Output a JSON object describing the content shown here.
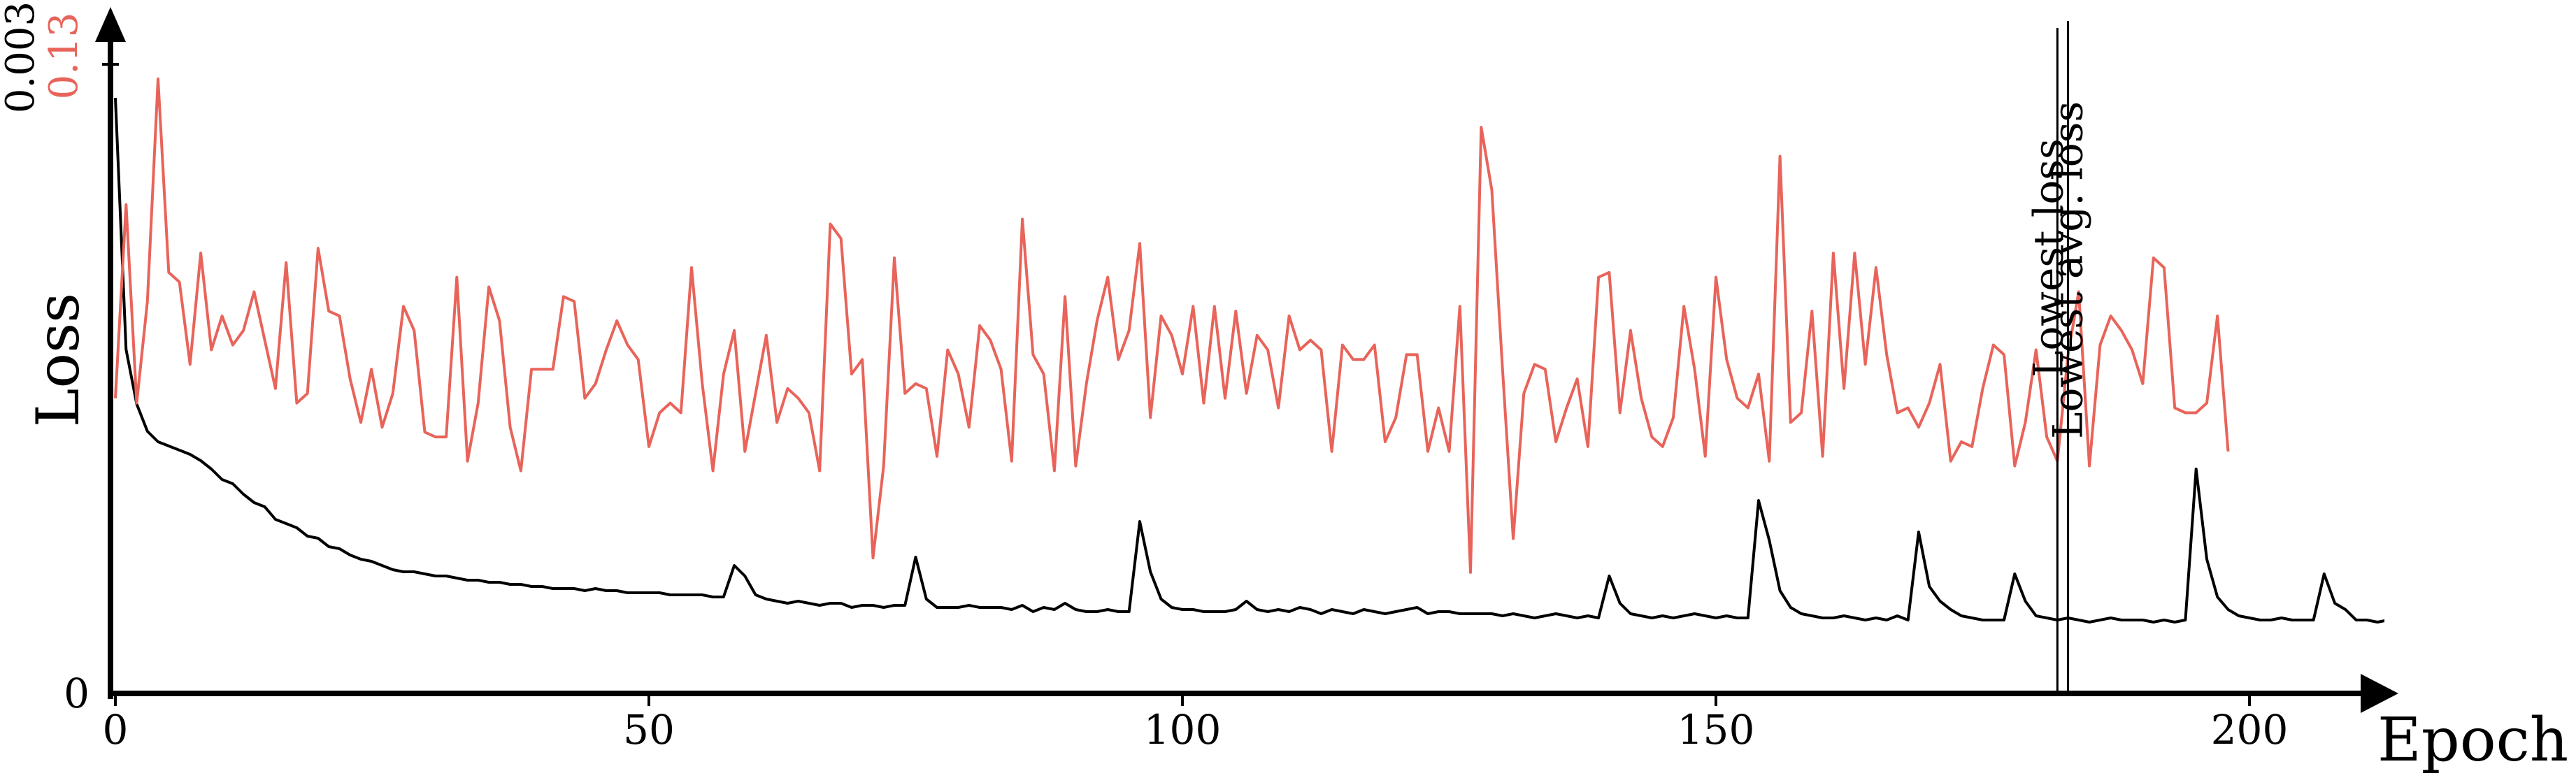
{
  "chart_data": {
    "type": "line",
    "xlabel": "Epoch",
    "ylabel": "Loss",
    "xlim": [
      0,
      210
    ],
    "x_ticks": [
      0,
      50,
      100,
      150,
      200
    ],
    "y_ticks_primary": {
      "values": [
        0,
        0.003
      ],
      "labels": [
        "0",
        "0.003"
      ]
    },
    "y_ticks_secondary": {
      "values": [
        0.13
      ],
      "labels": [
        "0.13"
      ],
      "color": "#e8645a"
    },
    "series": [
      {
        "color": "#000000",
        "axis": "primary",
        "ylim": [
          0,
          0.003
        ],
        "values": [
          0.00284,
          0.00164,
          0.00138,
          0.00125,
          0.0012,
          0.00118,
          0.00116,
          0.00114,
          0.00111,
          0.00107,
          0.00102,
          0.001,
          0.00095,
          0.00091,
          0.00089,
          0.00083,
          0.00081,
          0.00079,
          0.00075,
          0.00074,
          0.0007,
          0.00069,
          0.00066,
          0.00064,
          0.00063,
          0.00061,
          0.00059,
          0.00058,
          0.00058,
          0.00057,
          0.00056,
          0.00056,
          0.00055,
          0.00054,
          0.00054,
          0.00053,
          0.00053,
          0.00052,
          0.00052,
          0.00051,
          0.00051,
          0.0005,
          0.0005,
          0.0005,
          0.00049,
          0.0005,
          0.00049,
          0.00049,
          0.00048,
          0.00048,
          0.00048,
          0.00048,
          0.00047,
          0.00047,
          0.00047,
          0.00047,
          0.00046,
          0.00046,
          0.00061,
          0.00056,
          0.00047,
          0.00045,
          0.00044,
          0.00043,
          0.00044,
          0.00043,
          0.00042,
          0.00043,
          0.00043,
          0.00041,
          0.00042,
          0.00042,
          0.00041,
          0.00042,
          0.00042,
          0.00065,
          0.00045,
          0.00041,
          0.00041,
          0.00041,
          0.00042,
          0.00041,
          0.00041,
          0.00041,
          0.0004,
          0.00042,
          0.00039,
          0.00041,
          0.0004,
          0.00043,
          0.0004,
          0.00039,
          0.00039,
          0.0004,
          0.00039,
          0.00039,
          0.00082,
          0.00058,
          0.00045,
          0.00041,
          0.0004,
          0.0004,
          0.00039,
          0.00039,
          0.00039,
          0.0004,
          0.00044,
          0.0004,
          0.00039,
          0.0004,
          0.00039,
          0.00041,
          0.0004,
          0.00038,
          0.0004,
          0.00039,
          0.00038,
          0.0004,
          0.00039,
          0.00038,
          0.00039,
          0.0004,
          0.00041,
          0.00038,
          0.00039,
          0.00039,
          0.00038,
          0.00038,
          0.00038,
          0.00038,
          0.00037,
          0.00038,
          0.00037,
          0.00036,
          0.00037,
          0.00038,
          0.00037,
          0.00036,
          0.00037,
          0.00036,
          0.00056,
          0.00043,
          0.00038,
          0.00037,
          0.00036,
          0.00037,
          0.00036,
          0.00037,
          0.00038,
          0.00037,
          0.00036,
          0.00037,
          0.00036,
          0.00036,
          0.00092,
          0.00073,
          0.00049,
          0.00041,
          0.00038,
          0.00037,
          0.00036,
          0.00036,
          0.00037,
          0.00036,
          0.00035,
          0.00036,
          0.00035,
          0.00037,
          0.00035,
          0.00077,
          0.00051,
          0.00044,
          0.0004,
          0.00037,
          0.00036,
          0.00035,
          0.00035,
          0.00035,
          0.00057,
          0.00044,
          0.00037,
          0.00036,
          0.00035,
          0.00036,
          0.00035,
          0.00034,
          0.00035,
          0.00036,
          0.00035,
          0.00035,
          0.00035,
          0.00034,
          0.00035,
          0.00034,
          0.00035,
          0.00107,
          0.00064,
          0.00046,
          0.0004,
          0.00037,
          0.00036,
          0.00035,
          0.00035,
          0.00036,
          0.00035,
          0.00035,
          0.00035,
          0.00057,
          0.00043,
          0.0004,
          0.00035,
          0.00035,
          0.00034,
          0.00035,
          0.00035,
          0.00036
        ]
      },
      {
        "color": "#e8645a",
        "axis": "secondary",
        "ylim": [
          0,
          0.13
        ],
        "values": [
          0.061,
          0.101,
          0.06,
          0.081,
          0.127,
          0.087,
          0.085,
          0.068,
          0.091,
          0.071,
          0.078,
          0.072,
          0.075,
          0.083,
          0.073,
          0.063,
          0.089,
          0.06,
          0.062,
          0.092,
          0.079,
          0.078,
          0.065,
          0.056,
          0.067,
          0.055,
          0.062,
          0.08,
          0.075,
          0.054,
          0.053,
          0.053,
          0.086,
          0.048,
          0.06,
          0.084,
          0.077,
          0.055,
          0.046,
          0.067,
          0.067,
          0.067,
          0.082,
          0.081,
          0.061,
          0.064,
          0.071,
          0.077,
          0.072,
          0.069,
          0.051,
          0.058,
          0.06,
          0.058,
          0.088,
          0.064,
          0.046,
          0.066,
          0.075,
          0.05,
          0.062,
          0.074,
          0.056,
          0.063,
          0.061,
          0.058,
          0.046,
          0.097,
          0.094,
          0.066,
          0.069,
          0.028,
          0.047,
          0.09,
          0.062,
          0.064,
          0.063,
          0.049,
          0.071,
          0.066,
          0.055,
          0.076,
          0.073,
          0.067,
          0.048,
          0.098,
          0.07,
          0.066,
          0.046,
          0.082,
          0.047,
          0.064,
          0.077,
          0.086,
          0.069,
          0.075,
          0.093,
          0.057,
          0.078,
          0.074,
          0.066,
          0.08,
          0.06,
          0.08,
          0.061,
          0.079,
          0.062,
          0.074,
          0.071,
          0.059,
          0.078,
          0.071,
          0.073,
          0.071,
          0.05,
          0.072,
          0.069,
          0.069,
          0.072,
          0.052,
          0.057,
          0.07,
          0.07,
          0.05,
          0.059,
          0.05,
          0.08,
          0.025,
          0.117,
          0.104,
          0.067,
          0.032,
          0.062,
          0.068,
          0.067,
          0.052,
          0.059,
          0.065,
          0.051,
          0.086,
          0.087,
          0.058,
          0.075,
          0.061,
          0.053,
          0.051,
          0.057,
          0.08,
          0.067,
          0.049,
          0.086,
          0.069,
          0.061,
          0.059,
          0.066,
          0.048,
          0.111,
          0.056,
          0.058,
          0.079,
          0.049,
          0.091,
          0.063,
          0.091,
          0.068,
          0.088,
          0.07,
          0.058,
          0.059,
          0.055,
          0.06,
          0.068,
          0.048,
          0.052,
          0.051,
          0.063,
          0.072,
          0.07,
          0.047,
          0.056,
          0.071,
          0.053,
          0.048,
          0.07,
          0.083,
          0.047,
          0.072,
          0.078,
          0.075,
          0.071,
          0.064,
          0.09,
          0.088,
          0.059,
          0.058,
          0.058,
          0.06,
          0.078,
          0.05
        ]
      }
    ],
    "annotations": [
      {
        "x": 182,
        "text": "Lowest loss"
      },
      {
        "x": 183,
        "text": "Lowest avg. loss"
      }
    ]
  }
}
